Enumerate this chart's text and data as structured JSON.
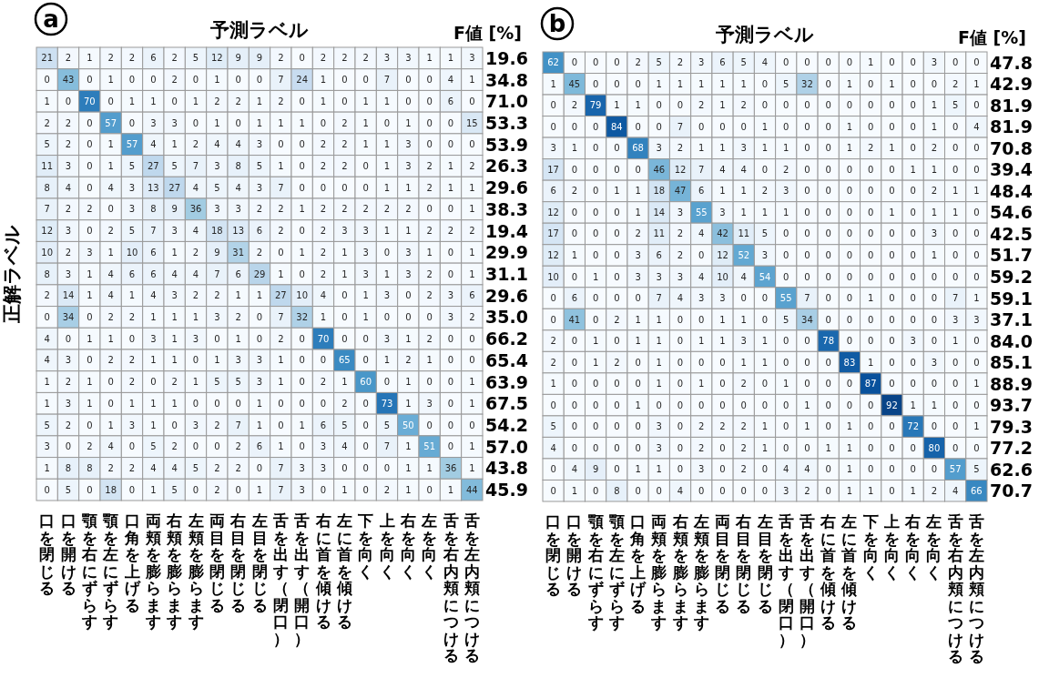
{
  "chart_data": [
    {
      "type": "heatmap",
      "title": "a",
      "xlabel": "予測ラベル",
      "ylabel": "正解ラベル",
      "y2label": "F値 [%]",
      "data_labels": true,
      "categories": [
        "口を閉じる",
        "口を開ける",
        "顎を右にずらす",
        "顎を左にずらす",
        "口角を上げる",
        "両頬を膨らます",
        "右頬を膨らます",
        "左頬を膨らます",
        "両目を閉じる",
        "右目を閉じる",
        "左目を閉じる",
        "舌を出す（閉口）",
        "舌を出す（開口）",
        "右に首を傾ける",
        "左に首を傾ける",
        "下を向く",
        "上を向く",
        "右を向く",
        "左を向く",
        "舌を右内頬につける",
        "舌を左内頬につける"
      ],
      "y_categories": [
        null,
        null,
        null,
        null,
        null,
        null,
        null,
        null,
        null,
        null,
        null,
        null,
        null,
        null,
        null,
        null,
        null,
        null,
        null,
        null,
        null
      ],
      "y2_categories": [
        "19.6",
        "34.8",
        "71.0",
        "53.3",
        "53.9",
        "26.3",
        "29.6",
        "38.3",
        "19.4",
        "29.9",
        "31.1",
        "29.6",
        "35.0",
        "66.2",
        "65.4",
        "63.9",
        "67.5",
        "54.2",
        "57.0",
        "43.8",
        "45.9"
      ],
      "cells": [
        [
          21,
          2,
          1,
          2,
          2,
          6,
          2,
          5,
          12,
          9,
          9,
          2,
          0,
          2,
          2,
          2,
          3,
          3,
          1,
          1,
          3
        ],
        [
          0,
          43,
          0,
          1,
          0,
          0,
          2,
          0,
          1,
          0,
          0,
          7,
          24,
          1,
          0,
          0,
          7,
          0,
          0,
          4,
          1
        ],
        [
          1,
          0,
          70,
          0,
          1,
          1,
          0,
          1,
          2,
          2,
          1,
          2,
          0,
          1,
          0,
          1,
          1,
          0,
          0,
          6,
          0
        ],
        [
          2,
          2,
          0,
          57,
          0,
          3,
          3,
          0,
          1,
          0,
          1,
          1,
          1,
          0,
          2,
          1,
          0,
          1,
          0,
          0,
          15
        ],
        [
          5,
          2,
          0,
          1,
          57,
          4,
          1,
          2,
          4,
          4,
          3,
          0,
          0,
          2,
          2,
          1,
          1,
          3,
          0,
          0,
          0
        ],
        [
          11,
          3,
          0,
          1,
          5,
          27,
          5,
          7,
          3,
          8,
          5,
          1,
          0,
          2,
          2,
          0,
          1,
          3,
          2,
          1,
          2
        ],
        [
          8,
          4,
          0,
          4,
          3,
          13,
          27,
          4,
          5,
          4,
          3,
          7,
          0,
          0,
          0,
          0,
          1,
          1,
          2,
          1,
          1
        ],
        [
          7,
          2,
          2,
          0,
          3,
          8,
          9,
          36,
          3,
          3,
          2,
          2,
          1,
          2,
          2,
          2,
          2,
          2,
          0,
          0,
          1
        ],
        [
          12,
          3,
          0,
          2,
          5,
          7,
          3,
          4,
          18,
          13,
          6,
          2,
          0,
          2,
          3,
          3,
          1,
          1,
          2,
          2,
          2
        ],
        [
          10,
          2,
          3,
          1,
          10,
          6,
          1,
          2,
          9,
          31,
          2,
          0,
          1,
          2,
          1,
          3,
          0,
          3,
          1,
          0,
          1
        ],
        [
          8,
          3,
          1,
          4,
          6,
          6,
          4,
          4,
          7,
          6,
          29,
          1,
          0,
          2,
          1,
          3,
          1,
          3,
          2,
          0,
          1
        ],
        [
          2,
          14,
          1,
          4,
          1,
          4,
          3,
          2,
          2,
          1,
          1,
          27,
          10,
          4,
          0,
          1,
          3,
          0,
          2,
          3,
          6
        ],
        [
          0,
          34,
          0,
          2,
          2,
          1,
          1,
          1,
          3,
          2,
          0,
          7,
          32,
          1,
          0,
          1,
          0,
          0,
          0,
          3,
          2
        ],
        [
          4,
          0,
          1,
          1,
          0,
          3,
          1,
          3,
          0,
          1,
          0,
          2,
          0,
          70,
          0,
          0,
          3,
          1,
          2,
          0,
          0
        ],
        [
          4,
          3,
          0,
          2,
          2,
          1,
          1,
          0,
          1,
          3,
          3,
          1,
          0,
          0,
          65,
          0,
          1,
          2,
          1,
          0,
          0
        ],
        [
          1,
          2,
          1,
          0,
          2,
          0,
          2,
          1,
          5,
          5,
          3,
          1,
          0,
          2,
          1,
          60,
          0,
          1,
          0,
          0,
          1
        ],
        [
          1,
          3,
          1,
          0,
          1,
          1,
          1,
          0,
          0,
          0,
          1,
          0,
          0,
          0,
          2,
          0,
          73,
          1,
          3,
          0,
          1
        ],
        [
          5,
          2,
          0,
          1,
          3,
          1,
          0,
          3,
          2,
          7,
          1,
          0,
          1,
          6,
          5,
          0,
          5,
          50,
          0,
          0,
          0
        ],
        [
          3,
          0,
          2,
          4,
          0,
          5,
          2,
          0,
          0,
          2,
          6,
          1,
          0,
          3,
          4,
          0,
          7,
          1,
          51,
          0,
          1
        ],
        [
          1,
          8,
          8,
          2,
          2,
          4,
          4,
          5,
          2,
          2,
          0,
          7,
          3,
          3,
          0,
          0,
          0,
          1,
          1,
          36,
          1
        ],
        [
          0,
          5,
          0,
          18,
          0,
          1,
          5,
          0,
          2,
          0,
          1,
          7,
          3,
          0,
          1,
          0,
          2,
          1,
          0,
          1,
          44
        ]
      ]
    },
    {
      "type": "heatmap",
      "title": "b",
      "xlabel": "予測ラベル",
      "y2label": "F値 [%]",
      "data_labels": true,
      "categories": [
        "口を閉じる",
        "口を開ける",
        "顎を右にずらす",
        "顎を左にずらす",
        "口角を上げる",
        "両頬を膨らます",
        "右頬を膨らます",
        "左頬を膨らます",
        "両目を閉じる",
        "右目を閉じる",
        "左目を閉じる",
        "舌を出す（閉口）",
        "舌を出す（開口）",
        "右に首を傾ける",
        "左に首を傾ける",
        "下を向く",
        "上を向く",
        "右を向く",
        "左を向く",
        "舌を右内頬につける",
        "舌を左内頬につける"
      ],
      "y_categories": [
        null,
        null,
        null,
        null,
        null,
        null,
        null,
        null,
        null,
        null,
        null,
        null,
        null,
        null,
        null,
        null,
        null,
        null,
        null,
        null,
        null
      ],
      "y2_categories": [
        "47.8",
        "42.9",
        "81.9",
        "81.9",
        "70.8",
        "39.4",
        "48.4",
        "54.6",
        "42.5",
        "51.7",
        "59.2",
        "59.1",
        "37.1",
        "84.0",
        "85.1",
        "88.9",
        "93.7",
        "79.3",
        "77.2",
        "62.6",
        "70.7"
      ],
      "cells": [
        [
          62,
          0,
          0,
          0,
          2,
          5,
          2,
          3,
          6,
          5,
          4,
          0,
          0,
          0,
          0,
          1,
          0,
          0,
          3,
          0,
          0
        ],
        [
          1,
          45,
          0,
          0,
          0,
          1,
          1,
          1,
          1,
          1,
          0,
          5,
          32,
          0,
          1,
          0,
          1,
          0,
          0,
          2,
          1
        ],
        [
          0,
          2,
          79,
          1,
          1,
          0,
          0,
          2,
          1,
          2,
          0,
          0,
          0,
          0,
          0,
          0,
          0,
          0,
          1,
          5,
          0
        ],
        [
          0,
          0,
          0,
          84,
          0,
          0,
          7,
          0,
          0,
          0,
          1,
          0,
          0,
          0,
          1,
          0,
          0,
          0,
          1,
          0,
          4
        ],
        [
          3,
          1,
          0,
          0,
          68,
          3,
          2,
          1,
          1,
          3,
          1,
          1,
          0,
          0,
          1,
          2,
          1,
          0,
          2,
          0,
          0
        ],
        [
          17,
          0,
          0,
          0,
          0,
          46,
          12,
          7,
          4,
          4,
          0,
          2,
          0,
          0,
          0,
          0,
          0,
          1,
          1,
          0,
          0
        ],
        [
          6,
          2,
          0,
          1,
          1,
          18,
          47,
          6,
          1,
          1,
          2,
          3,
          0,
          0,
          0,
          0,
          0,
          0,
          2,
          1,
          1
        ],
        [
          12,
          0,
          0,
          0,
          1,
          14,
          3,
          55,
          3,
          1,
          1,
          1,
          0,
          0,
          0,
          0,
          1,
          0,
          1,
          1,
          0
        ],
        [
          17,
          0,
          0,
          0,
          2,
          11,
          2,
          4,
          42,
          11,
          5,
          0,
          0,
          0,
          0,
          0,
          0,
          0,
          3,
          0,
          0
        ],
        [
          12,
          1,
          0,
          0,
          3,
          6,
          2,
          0,
          12,
          52,
          3,
          0,
          0,
          0,
          0,
          0,
          0,
          0,
          1,
          0,
          0
        ],
        [
          10,
          0,
          1,
          0,
          3,
          3,
          3,
          4,
          10,
          4,
          54,
          0,
          0,
          0,
          0,
          0,
          0,
          0,
          0,
          0,
          0
        ],
        [
          0,
          6,
          0,
          0,
          0,
          7,
          4,
          3,
          3,
          0,
          0,
          55,
          7,
          0,
          0,
          1,
          0,
          0,
          0,
          7,
          1
        ],
        [
          0,
          41,
          0,
          2,
          1,
          1,
          0,
          0,
          1,
          1,
          0,
          5,
          34,
          0,
          0,
          0,
          0,
          0,
          0,
          3,
          3
        ],
        [
          2,
          0,
          1,
          0,
          1,
          1,
          0,
          1,
          1,
          3,
          1,
          0,
          0,
          78,
          0,
          0,
          0,
          3,
          0,
          1,
          0
        ],
        [
          2,
          0,
          1,
          2,
          0,
          1,
          0,
          0,
          0,
          1,
          1,
          0,
          0,
          0,
          83,
          1,
          0,
          0,
          3,
          0,
          0
        ],
        [
          1,
          0,
          0,
          0,
          0,
          1,
          0,
          1,
          0,
          2,
          0,
          1,
          0,
          0,
          0,
          87,
          0,
          0,
          0,
          0,
          1
        ],
        [
          0,
          0,
          0,
          0,
          1,
          0,
          0,
          0,
          0,
          0,
          0,
          0,
          1,
          0,
          0,
          0,
          92,
          1,
          1,
          0,
          0
        ],
        [
          5,
          0,
          0,
          0,
          0,
          3,
          0,
          2,
          2,
          2,
          1,
          0,
          1,
          0,
          1,
          0,
          0,
          72,
          0,
          0,
          1
        ],
        [
          4,
          0,
          0,
          0,
          0,
          3,
          0,
          2,
          0,
          2,
          1,
          0,
          0,
          1,
          1,
          0,
          0,
          0,
          80,
          0,
          0
        ],
        [
          0,
          4,
          9,
          0,
          1,
          1,
          0,
          3,
          0,
          2,
          0,
          4,
          4,
          0,
          1,
          0,
          0,
          0,
          0,
          57,
          5
        ],
        [
          0,
          1,
          0,
          8,
          0,
          0,
          4,
          0,
          0,
          0,
          0,
          3,
          2,
          0,
          1,
          1,
          0,
          1,
          2,
          4,
          66
        ]
      ]
    }
  ]
}
